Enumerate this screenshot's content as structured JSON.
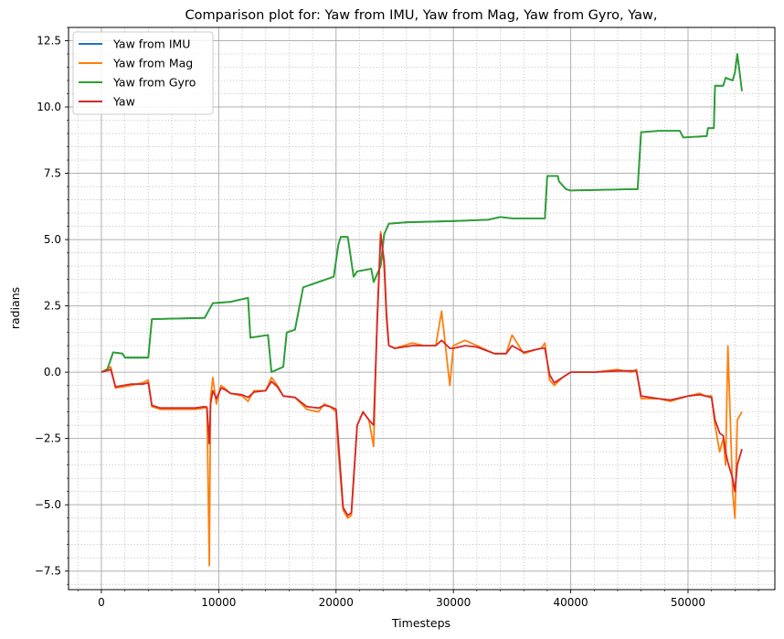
{
  "chart_data": {
    "type": "line",
    "title": "Comparison plot for: Yaw from IMU, Yaw from Mag, Yaw from Gyro, Yaw,",
    "xlabel": "Timesteps",
    "ylabel": "radians",
    "xlim": [
      -2800,
      57400
    ],
    "ylim": [
      -8.2,
      13.0
    ],
    "xticks": [
      0,
      10000,
      20000,
      30000,
      40000,
      50000
    ],
    "xtick_labels": [
      "0",
      "10000",
      "20000",
      "30000",
      "40000",
      "50000"
    ],
    "yticks": [
      -7.5,
      -5.0,
      -2.5,
      0.0,
      2.5,
      5.0,
      7.5,
      10.0,
      12.5
    ],
    "ytick_labels": [
      "−7.5",
      "−5.0",
      "−2.5",
      "0.0",
      "2.5",
      "5.0",
      "7.5",
      "10.0",
      "12.5"
    ],
    "grid": "major and minor",
    "legend_position": "upper-left",
    "series": [
      {
        "name": "Yaw from IMU",
        "color": "#1f77b4",
        "x": [
          0,
          500,
          1000,
          1800,
          2000,
          4000,
          4300,
          8800,
          9500,
          11000,
          12000,
          12500,
          12700,
          14200,
          14500,
          15500,
          15800,
          16500,
          17200,
          18500,
          19800,
          20200,
          20400,
          21000,
          21500,
          21800,
          23000,
          23200,
          23800,
          24100,
          24500,
          26000,
          30000,
          33000,
          34000,
          35000,
          37800,
          38000,
          38900,
          39000,
          39600,
          40000,
          45000,
          45700,
          46000,
          47500,
          49300,
          49600,
          51600,
          51700,
          52200,
          52300,
          53000,
          53200,
          53800,
          54000,
          54200,
          54600
        ],
        "y": [
          0,
          0.1,
          0.75,
          0.7,
          0.55,
          0.55,
          2.0,
          2.05,
          2.6,
          2.65,
          2.75,
          2.8,
          1.3,
          1.4,
          0.0,
          0.2,
          1.5,
          1.6,
          3.2,
          3.4,
          3.6,
          4.8,
          5.1,
          5.1,
          3.6,
          3.8,
          3.9,
          3.4,
          4.0,
          5.2,
          5.6,
          5.65,
          5.7,
          5.75,
          5.85,
          5.8,
          5.8,
          7.4,
          7.4,
          7.2,
          6.9,
          6.85,
          6.9,
          6.9,
          9.05,
          9.1,
          9.1,
          8.85,
          8.9,
          9.2,
          9.2,
          10.8,
          10.8,
          11.1,
          11.0,
          11.3,
          12.0,
          10.6
        ]
      },
      {
        "name": "Yaw from Mag",
        "color": "#ff7f0e",
        "x": [
          0,
          800,
          1200,
          2500,
          3500,
          4000,
          4300,
          5000,
          6000,
          7000,
          8000,
          8800,
          9000,
          9200,
          9300,
          9500,
          9800,
          10200,
          10500,
          11000,
          12000,
          12500,
          13000,
          14000,
          14500,
          15000,
          15500,
          16500,
          17500,
          18500,
          19000,
          19500,
          20000,
          20200,
          20600,
          21000,
          21300,
          21800,
          22300,
          22800,
          23200,
          23500,
          23800,
          24100,
          24300,
          24500,
          25000,
          26500,
          27500,
          28500,
          29000,
          29700,
          30000,
          31000,
          32000,
          33500,
          34500,
          35000,
          36000,
          37000,
          37500,
          37800,
          38200,
          38600,
          39300,
          40000,
          42000,
          44000,
          45200,
          45600,
          46000,
          47500,
          48500,
          50000,
          51000,
          51500,
          52000,
          52300,
          52700,
          53000,
          53200,
          53400,
          53800,
          54000,
          54200,
          54600
        ],
        "y": [
          0,
          0.2,
          -0.6,
          -0.5,
          -0.4,
          -0.3,
          -1.3,
          -1.4,
          -1.4,
          -1.4,
          -1.4,
          -1.35,
          -1.3,
          -7.3,
          -1.0,
          -0.2,
          -1.2,
          -0.5,
          -0.6,
          -0.8,
          -0.9,
          -1.1,
          -0.7,
          -0.7,
          -0.2,
          -0.5,
          -0.9,
          -0.95,
          -1.4,
          -1.5,
          -1.2,
          -1.3,
          -1.5,
          -3.0,
          -5.2,
          -5.5,
          -5.4,
          -2.0,
          -1.5,
          -1.8,
          -2.8,
          2.0,
          5.3,
          4.0,
          2.0,
          1.0,
          0.9,
          1.1,
          1.0,
          1.0,
          2.3,
          -0.5,
          1.0,
          1.2,
          1.0,
          0.7,
          0.7,
          1.4,
          0.7,
          0.85,
          0.9,
          1.1,
          -0.3,
          -0.5,
          -0.2,
          0.0,
          0.0,
          0.1,
          0.0,
          0.1,
          -1.0,
          -1.0,
          -1.1,
          -0.9,
          -0.8,
          -0.9,
          -0.9,
          -2.0,
          -3.0,
          -2.5,
          -3.5,
          1.0,
          -4.5,
          -5.5,
          -1.8,
          -1.5
        ]
      },
      {
        "name": "Yaw from Gyro",
        "color": "#2ca02c",
        "x": [
          0,
          500,
          1000,
          1800,
          2000,
          4000,
          4300,
          8800,
          9500,
          11000,
          12000,
          12500,
          12700,
          14200,
          14500,
          15500,
          15800,
          16500,
          17200,
          18500,
          19800,
          20200,
          20400,
          21000,
          21500,
          21800,
          23000,
          23200,
          23800,
          24100,
          24500,
          26000,
          30000,
          33000,
          34000,
          35000,
          37800,
          38000,
          38900,
          39000,
          39600,
          40000,
          45000,
          45700,
          46000,
          47500,
          49300,
          49600,
          51600,
          51700,
          52200,
          52300,
          53000,
          53200,
          53800,
          54000,
          54200,
          54600
        ],
        "y": [
          0,
          0.1,
          0.75,
          0.7,
          0.55,
          0.55,
          2.0,
          2.05,
          2.6,
          2.65,
          2.75,
          2.8,
          1.3,
          1.4,
          0.0,
          0.2,
          1.5,
          1.6,
          3.2,
          3.4,
          3.6,
          4.8,
          5.1,
          5.1,
          3.6,
          3.8,
          3.9,
          3.4,
          4.0,
          5.2,
          5.6,
          5.65,
          5.7,
          5.75,
          5.85,
          5.8,
          5.8,
          7.4,
          7.4,
          7.2,
          6.9,
          6.85,
          6.9,
          6.9,
          9.05,
          9.1,
          9.1,
          8.85,
          8.9,
          9.2,
          9.2,
          10.8,
          10.8,
          11.1,
          11.0,
          11.3,
          12.0,
          10.6
        ]
      },
      {
        "name": "Yaw",
        "color": "#d62728",
        "x": [
          0,
          800,
          1200,
          2500,
          3500,
          4000,
          4300,
          5000,
          6000,
          7000,
          8000,
          8800,
          9000,
          9200,
          9300,
          9500,
          9800,
          10200,
          10500,
          11000,
          12000,
          12500,
          13000,
          14000,
          14500,
          15000,
          15500,
          16500,
          17500,
          18500,
          19000,
          19500,
          20000,
          20200,
          20600,
          21000,
          21300,
          21800,
          22300,
          22800,
          23200,
          23500,
          23800,
          24100,
          24300,
          24500,
          25000,
          26500,
          27500,
          28500,
          29000,
          29700,
          30000,
          31000,
          32000,
          33500,
          34500,
          35000,
          36000,
          37000,
          37500,
          37800,
          38200,
          38600,
          39300,
          40000,
          42000,
          44000,
          45200,
          45600,
          46000,
          47500,
          48500,
          50000,
          51000,
          51500,
          52000,
          52300,
          52700,
          53000,
          53200,
          53400,
          53800,
          54000,
          54200,
          54600
        ],
        "y": [
          0,
          0.1,
          -0.55,
          -0.45,
          -0.45,
          -0.4,
          -1.25,
          -1.35,
          -1.35,
          -1.35,
          -1.35,
          -1.3,
          -1.35,
          -2.7,
          -1.2,
          -0.7,
          -1.0,
          -0.6,
          -0.65,
          -0.8,
          -0.85,
          -0.95,
          -0.75,
          -0.7,
          -0.35,
          -0.55,
          -0.9,
          -0.95,
          -1.3,
          -1.35,
          -1.25,
          -1.3,
          -1.4,
          -2.6,
          -5.1,
          -5.4,
          -5.3,
          -2.0,
          -1.5,
          -1.8,
          -2.0,
          1.8,
          5.2,
          4.2,
          2.2,
          1.0,
          0.9,
          1.0,
          1.0,
          1.0,
          1.2,
          0.9,
          0.9,
          1.0,
          0.95,
          0.7,
          0.7,
          1.0,
          0.75,
          0.85,
          0.9,
          0.9,
          -0.1,
          -0.4,
          -0.2,
          0.0,
          0.0,
          0.05,
          0.05,
          0.05,
          -0.9,
          -1.0,
          -1.05,
          -0.9,
          -0.85,
          -0.9,
          -0.95,
          -1.8,
          -2.3,
          -2.4,
          -3.0,
          -3.4,
          -4.0,
          -4.5,
          -3.5,
          -2.9
        ]
      }
    ]
  }
}
